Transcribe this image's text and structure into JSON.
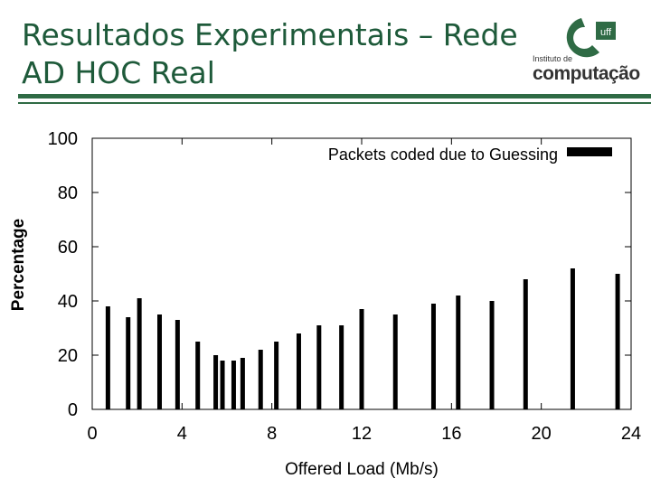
{
  "slide": {
    "title_line1": "Resultados Experimentais – Rede",
    "title_line2": "AD HOC Real",
    "accent_color": "#2f6b45"
  },
  "logo": {
    "small_text": "Instituto de",
    "big_text": "computação",
    "badge_text": "uff"
  },
  "chart_data": {
    "type": "bar",
    "title": "",
    "xlabel": "Offered Load (Mb/s)",
    "ylabel": "Percentage",
    "xlim": [
      0,
      24
    ],
    "ylim": [
      0,
      100
    ],
    "xticks": [
      0,
      4,
      8,
      12,
      16,
      20,
      24
    ],
    "yticks": [
      0,
      20,
      40,
      60,
      80,
      100
    ],
    "legend_position": "top-right",
    "grid": false,
    "series": [
      {
        "name": "Packets coded due to Guessing",
        "color": "#000000",
        "x": [
          0.7,
          1.6,
          2.1,
          3.0,
          3.8,
          4.7,
          5.5,
          5.8,
          6.3,
          6.7,
          7.5,
          8.2,
          9.2,
          10.1,
          11.1,
          12.0,
          13.5,
          15.2,
          16.3,
          17.8,
          19.3,
          21.4,
          23.4
        ],
        "values": [
          38,
          34,
          41,
          35,
          33,
          25,
          20,
          18,
          18,
          19,
          22,
          25,
          28,
          31,
          31,
          37,
          35,
          39,
          42,
          40,
          48,
          52,
          50
        ]
      }
    ]
  }
}
